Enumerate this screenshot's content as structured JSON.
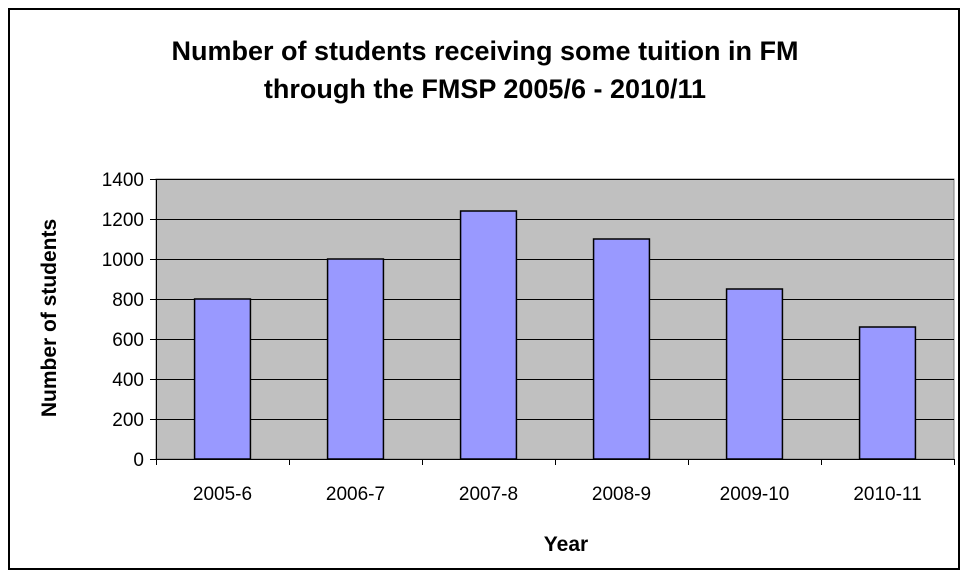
{
  "chart_data": {
    "type": "bar",
    "title": [
      "Number of students receiving some tuition in FM",
      "through the FMSP 2005/6 - 2010/11"
    ],
    "xlabel": "Year",
    "ylabel": "Number of students",
    "categories": [
      "2005-6",
      "2006-7",
      "2007-8",
      "2008-9",
      "2009-10",
      "2010-11"
    ],
    "values": [
      800,
      1000,
      1240,
      1100,
      850,
      660
    ],
    "ylim": [
      0,
      1400
    ],
    "yticks": [
      0,
      200,
      400,
      600,
      800,
      1000,
      1200,
      1400
    ],
    "grid": true,
    "legend": "none",
    "colors": {
      "bar_fill": "#9999ff",
      "bar_stroke": "#000000",
      "plot_background": "#c0c0c0",
      "gridline": "#000000",
      "frame": "#000000"
    }
  }
}
